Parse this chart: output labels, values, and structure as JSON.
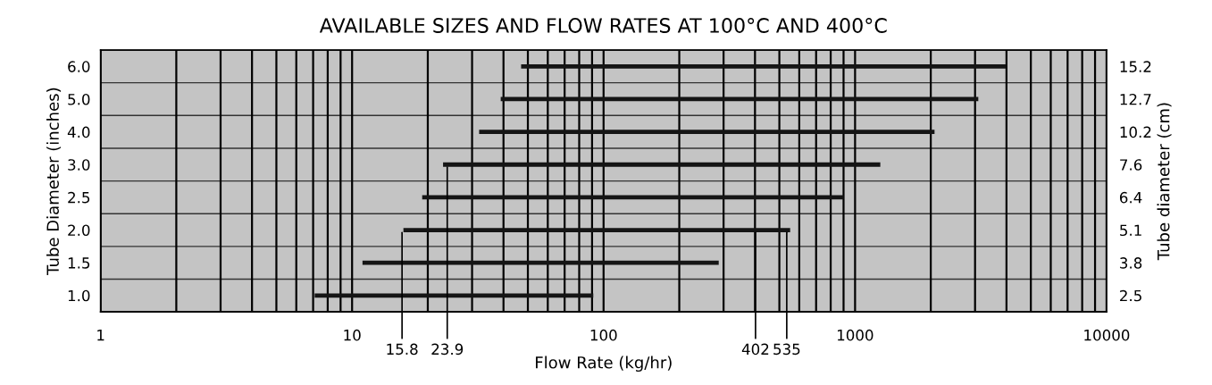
{
  "chart_data": {
    "type": "bar",
    "orientation": "horizontal",
    "title": "AVAILABLE SIZES AND FLOW RATES AT 100°C AND 400°C",
    "xlabel": "Flow Rate (kg/hr)",
    "ylabel": "Tube Diameter (inches)",
    "y2label": "Tube diameter (cm)",
    "categories": [
      "6.0",
      "5.0",
      "4.0",
      "3.0",
      "2.5",
      "2.0",
      "1.5",
      "1.0"
    ],
    "y2_categories": [
      "15.2",
      "12.7",
      "10.2",
      "7.6",
      "6.4",
      "5.1",
      "3.8",
      "2.5"
    ],
    "base": [
      47,
      39,
      32,
      23,
      19,
      16,
      11,
      7.1
    ],
    "values": [
      3933,
      3051,
      2038,
      1237,
      881,
      536,
      276,
      83.9
    ],
    "color": "#151515",
    "log": "x",
    "xlim": [
      1,
      10000
    ],
    "xticks": [
      1,
      10,
      100,
      1000,
      10000
    ],
    "grid": true,
    "annotations": [
      {
        "text": "15.8",
        "x": 15.8,
        "y": "2.0"
      },
      {
        "text": "23.9",
        "x": 23.9,
        "y": "3.0"
      },
      {
        "text": "402",
        "x": 402,
        "y": "2.0"
      },
      {
        "text": "535",
        "x": 535,
        "y": "2.0"
      }
    ]
  }
}
